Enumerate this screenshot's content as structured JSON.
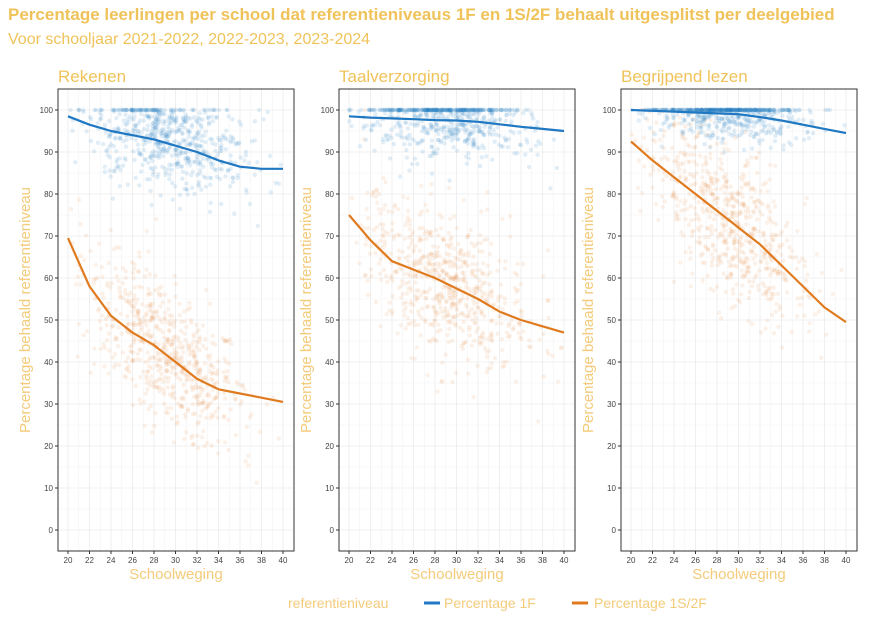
{
  "title": "Percentage leerlingen per school dat referentieniveaus 1F en 1S/2F behaalt uitgesplitst per deelgebied",
  "subtitle": "Voor schooljaar 2021-2022, 2022-2023, 2023-2024",
  "legend": {
    "title": "referentieniveau",
    "items": [
      "Percentage 1F",
      "Percentage 1S/2F"
    ]
  },
  "colors": {
    "text": "#F0C35A",
    "1F": "#1F78C1",
    "1S/2F": "#E07A1F"
  },
  "chart_data": [
    {
      "type": "scatter",
      "title": "Rekenen",
      "xlabel": "Schoolweging",
      "ylabel": "Percentage behaald referentieniveau",
      "xlim": [
        20,
        40
      ],
      "ylim": [
        -5,
        105
      ],
      "xticks": [
        20,
        22,
        24,
        26,
        28,
        30,
        32,
        34,
        36,
        38,
        40
      ],
      "yticks": [
        0,
        10,
        20,
        30,
        40,
        50,
        60,
        70,
        80,
        90,
        100
      ],
      "grid": true,
      "x": [
        20,
        22,
        24,
        26,
        28,
        30,
        32,
        34,
        36,
        38,
        40
      ],
      "series": [
        {
          "name": "Percentage 1F",
          "trend": [
            98.5,
            96.5,
            95,
            94,
            93,
            91.5,
            90,
            88,
            86.5,
            86,
            86
          ]
        },
        {
          "name": "Percentage 1S/2F",
          "trend": [
            69.5,
            58,
            51,
            47,
            44,
            40,
            36,
            33.5,
            32.5,
            31.5,
            30.5
          ]
        }
      ]
    },
    {
      "type": "scatter",
      "title": "Taalverzorging",
      "xlabel": "Schoolweging",
      "ylabel": "Percentage behaald referentieniveau",
      "xlim": [
        20,
        40
      ],
      "ylim": [
        -5,
        105
      ],
      "xticks": [
        20,
        22,
        24,
        26,
        28,
        30,
        32,
        34,
        36,
        38,
        40
      ],
      "yticks": [
        0,
        10,
        20,
        30,
        40,
        50,
        60,
        70,
        80,
        90,
        100
      ],
      "grid": true,
      "x": [
        20,
        22,
        24,
        26,
        28,
        30,
        32,
        34,
        36,
        38,
        40
      ],
      "series": [
        {
          "name": "Percentage 1F",
          "trend": [
            98.5,
            98.2,
            98,
            97.8,
            97.6,
            97.5,
            97.2,
            96.6,
            96,
            95.5,
            95
          ]
        },
        {
          "name": "Percentage 1S/2F",
          "trend": [
            75,
            69,
            64,
            62,
            60,
            57.5,
            55,
            52,
            50,
            48.5,
            47
          ]
        }
      ]
    },
    {
      "type": "scatter",
      "title": "Begrijpend lezen",
      "xlabel": "Schoolweging",
      "ylabel": "Percentage behaald referentieniveau",
      "xlim": [
        20,
        40
      ],
      "ylim": [
        -5,
        105
      ],
      "xticks": [
        20,
        22,
        24,
        26,
        28,
        30,
        32,
        34,
        36,
        38,
        40
      ],
      "yticks": [
        0,
        10,
        20,
        30,
        40,
        50,
        60,
        70,
        80,
        90,
        100
      ],
      "grid": true,
      "x": [
        20,
        22,
        24,
        26,
        28,
        30,
        32,
        34,
        36,
        38,
        40
      ],
      "series": [
        {
          "name": "Percentage 1F",
          "trend": [
            100,
            99.8,
            99.6,
            99.4,
            99.2,
            99,
            98.3,
            97.5,
            96.5,
            95.5,
            94.5
          ]
        },
        {
          "name": "Percentage 1S/2F",
          "trend": [
            92.5,
            88,
            84,
            80,
            76,
            72,
            68,
            63,
            58,
            53,
            49.5
          ]
        }
      ]
    }
  ]
}
